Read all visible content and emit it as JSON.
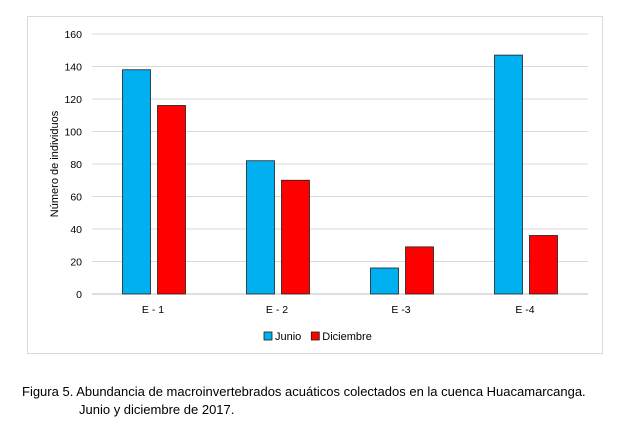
{
  "chart_data": {
    "type": "bar",
    "categories": [
      "E - 1",
      "E - 2",
      "E -3",
      "E -4"
    ],
    "series": [
      {
        "name": "Junio",
        "color": "#00b0f0",
        "values": [
          138,
          82,
          16,
          147
        ]
      },
      {
        "name": "Diciembre",
        "color": "#ff0000",
        "values": [
          116,
          70,
          29,
          36
        ]
      }
    ],
    "ylabel": "Número de individuos",
    "ylim": [
      0,
      160
    ],
    "yticks": [
      0,
      20,
      40,
      60,
      80,
      100,
      120,
      140,
      160
    ],
    "grid": true,
    "legend_position": "bottom"
  },
  "caption": {
    "line1": "Figura 5. Abundancia de macroinvertebrados acuáticos colectados en la cuenca Huacamarcanga.",
    "line2": "Junio y diciembre de 2017."
  }
}
